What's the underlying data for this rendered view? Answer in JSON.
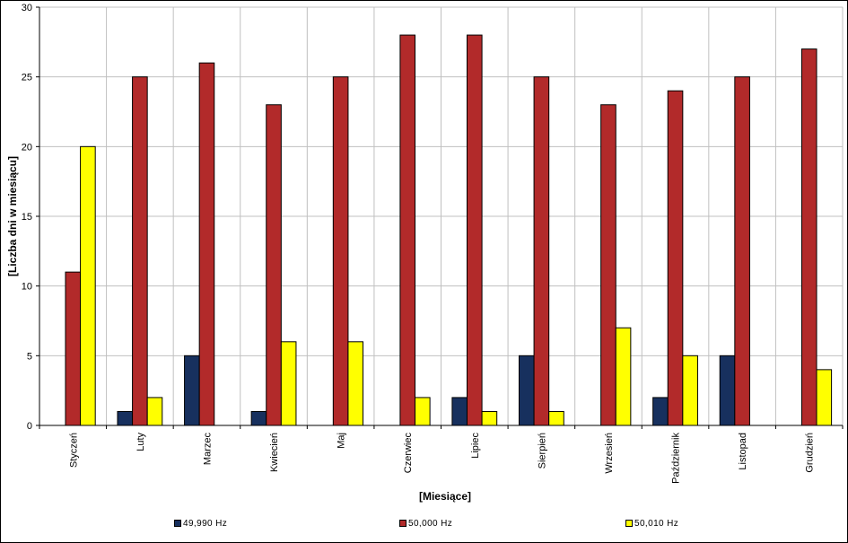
{
  "chart_data": {
    "type": "bar",
    "title": "",
    "xlabel": "[Miesiące]",
    "ylabel": "[Liczba dni w miesiącu]",
    "ylim": [
      0,
      30
    ],
    "yticks": [
      "0",
      "5",
      "10",
      "15",
      "20",
      "25",
      "30"
    ],
    "grid": true,
    "legend_position": "bottom",
    "categories": [
      "Styczeń",
      "Luty",
      "Marzec",
      "Kwiecień",
      "Maj",
      "Czerwiec",
      "Lipiec",
      "Sierpień",
      "Wrzesień",
      "Październik",
      "Listopad",
      "Grudzień"
    ],
    "series": [
      {
        "name": "49,990 Hz",
        "color": "#17305e",
        "values": [
          0,
          1,
          5,
          1,
          0,
          0,
          2,
          5,
          0,
          2,
          5,
          0
        ]
      },
      {
        "name": "50,000 Hz",
        "color": "#b22a2a",
        "values": [
          11,
          25,
          26,
          23,
          25,
          28,
          28,
          25,
          23,
          24,
          25,
          27
        ]
      },
      {
        "name": "50,010 Hz",
        "color": "#ffff00",
        "values": [
          20,
          2,
          0,
          6,
          6,
          2,
          1,
          1,
          7,
          5,
          0,
          4
        ]
      }
    ]
  }
}
